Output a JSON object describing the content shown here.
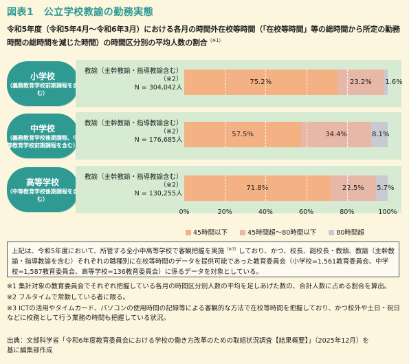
{
  "title": "図表1　公立学校教諭の勤務実態",
  "subtitle": {
    "text": "令和5年度（令和5年4月〜令和6年3月）における各月の時間外在校等時間（「在校等時間」等の総時間から所定の勤務時間の総時間を減じた時間）の時間区分別の平均人数の割合",
    "marker": "（※1）"
  },
  "rows": [
    {
      "school": "小学校",
      "desc": "（義務教育学校前期課程を含む）",
      "teacher": "教諭（主幹教諭・指導教諭含む）",
      "note_mark": "（※2）",
      "n": "N = 304,042人"
    },
    {
      "school": "中学校",
      "desc": "（義務教育学校後期課程、中等教育学校前期課程を含む）",
      "teacher": "教諭（主幹教諭・指導教諭含む）",
      "note_mark": "（※2）",
      "n": "N = 176,685人"
    },
    {
      "school": "高等学校",
      "desc": "（中等教育学校後期課程を含む）",
      "teacher": "教諭（主幹教諭・指導教諭含む）",
      "note_mark": "（※2）",
      "n": "N = 130,255人"
    }
  ],
  "chart_data": {
    "type": "bar",
    "stacked": true,
    "orientation": "horizontal",
    "categories": [
      "小学校",
      "中学校",
      "高等学校"
    ],
    "series": [
      {
        "name": "45時間以下",
        "values": [
          75.2,
          57.5,
          71.8
        ],
        "labels": [
          "75.2%",
          "57.5%",
          "71.8%"
        ],
        "color": "#f4b183"
      },
      {
        "name": "45時間超〜80時間以下",
        "values": [
          23.2,
          34.4,
          22.5
        ],
        "labels": [
          "23.2%",
          "34.4%",
          "22.5%"
        ],
        "color": "#e7b8a8"
      },
      {
        "name": "80時間超",
        "values": [
          1.6,
          8.1,
          5.7
        ],
        "labels": [
          "1.6%",
          "8.1%",
          "5.7%"
        ],
        "color": "#c9c9d2"
      }
    ],
    "xlim": [
      0,
      100
    ],
    "xticks": [
      "0%",
      "20%",
      "40%",
      "60%",
      "80%",
      "100%"
    ],
    "legend_position": "bottom"
  },
  "note_box": {
    "part1": "上記は、令和5年度において、所管する全小中高等学校で客観把握を実施",
    "mark": "（※3）",
    "part2": "しており、かつ、校長、副校長・教頭、教諭（主幹教諭・指導教諭を含む）それぞれの職種別に在校等時間のデータを提供可能であった教育委員会（小学校=1,561教育委員会、中学校=1,587教育委員会、高等学校=136教育委員会）に係るデータを対象としている。"
  },
  "footnotes": [
    "※1 集計対象の教育委員会でそれぞれ把握している各月の時間区分別人数の平均を足しあげた数の、合計人数に占める割合を算出。",
    "※2 フルタイムで常勤している者に限る。",
    "※3 ICTの活用やタイムカード、パソコンの使用時間の記録等による客観的な方法で在校等時間を把握しており、かつ校外や土日・祝日などに校務として行う業務の時間も把握している状況。"
  ],
  "source": {
    "line1": "出典：文部科学省「令和6年度教育委員会における学校の働き方改革のための取組状況調査【結果概要】」（2025年12月）を",
    "line2": "基に編集部作成"
  }
}
